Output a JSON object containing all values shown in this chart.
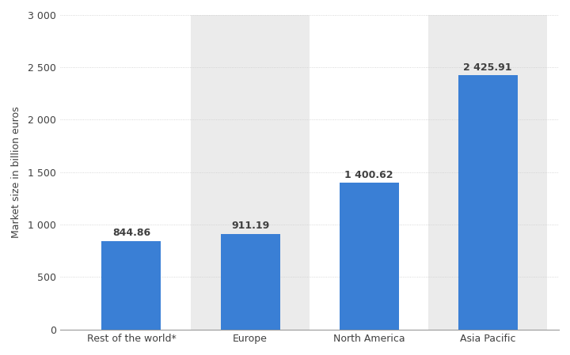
{
  "categories": [
    "Rest of the world*",
    "Europe",
    "North America",
    "Asia Pacific"
  ],
  "values": [
    844.86,
    911.19,
    1400.62,
    2425.91
  ],
  "bar_color": "#3a7fd5",
  "bar_width": 0.5,
  "ylabel": "Market size in billion euros",
  "ylim": [
    0,
    3000
  ],
  "yticks": [
    0,
    500,
    1000,
    1500,
    2000,
    2500,
    3000
  ],
  "ytick_labels": [
    "0",
    "500",
    "1 000",
    "1 500",
    "2 000",
    "2 500",
    "3 000"
  ],
  "value_labels": [
    "844.86",
    "911.19",
    "1 400.62",
    "2 425.91"
  ],
  "background_color": "#ffffff",
  "plot_bg_color": "#ffffff",
  "grid_color": "#cccccc",
  "font_color": "#404040",
  "label_fontsize": 9,
  "tick_fontsize": 9,
  "value_fontsize": 9,
  "bar_shaded_indices": [
    1,
    3
  ],
  "shaded_color": "#ebebeb"
}
